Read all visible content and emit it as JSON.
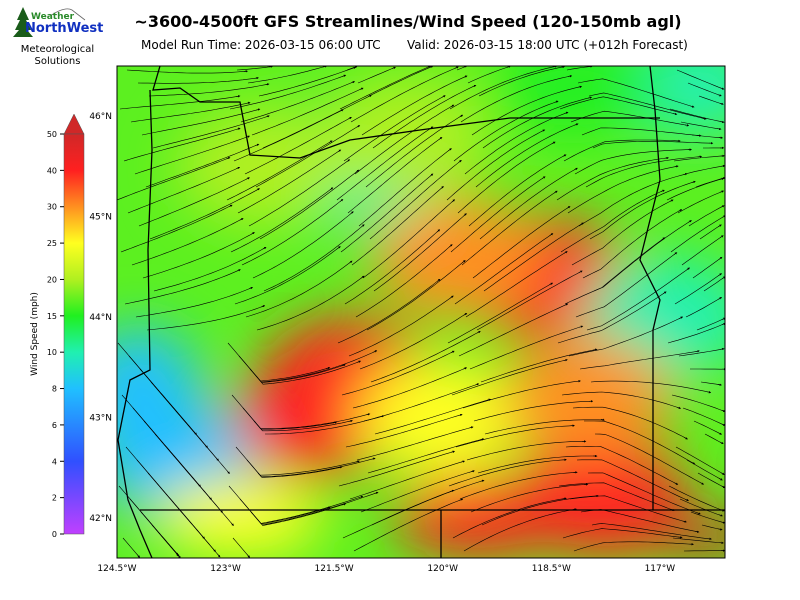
{
  "header": {
    "title": "~3600-4500ft GFS Streamlines/Wind Speed (120-150mb agl)",
    "model_run": "Model Run Time: 2026-03-15 06:00 UTC",
    "valid": "Valid: 2026-03-15 18:00 UTC  (+012h Forecast)"
  },
  "logo": {
    "line1": "Weather",
    "line2": "NorthWest",
    "caption": "Meteorological Solutions",
    "colors": {
      "tree": "#1a5c1a",
      "weather": "#2a8a2a",
      "northwest": "#1030c0"
    }
  },
  "chart_data": {
    "type": "heatmap",
    "title": "~3600-4500ft GFS Streamlines/Wind Speed (120-150mb agl)",
    "xlabel": "",
    "ylabel": "",
    "x_ticks": [
      "124.5°W",
      "123°W",
      "121.5°W",
      "120°W",
      "118.5°W",
      "117°W"
    ],
    "y_ticks": [
      "46°N",
      "45°N",
      "44°N",
      "43°N",
      "42°N"
    ],
    "xlim": [
      -124.5,
      -116.1
    ],
    "ylim": [
      41.6,
      46.5
    ],
    "overlay": "streamlines",
    "colorbar": {
      "label": "Wind Speed (mph)",
      "ticks": [
        0,
        2,
        4,
        6,
        8,
        10,
        15,
        20,
        25,
        30,
        40,
        50
      ],
      "extend": "max",
      "stops": [
        {
          "v": 0,
          "c": "#c040ff"
        },
        {
          "v": 4,
          "c": "#3050ff"
        },
        {
          "v": 8,
          "c": "#20c0ff"
        },
        {
          "v": 10,
          "c": "#20f0b0"
        },
        {
          "v": 15,
          "c": "#20f020"
        },
        {
          "v": 20,
          "c": "#b0f020"
        },
        {
          "v": 25,
          "c": "#ffff20"
        },
        {
          "v": 30,
          "c": "#ff9020"
        },
        {
          "v": 40,
          "c": "#ff2020"
        },
        {
          "v": 50,
          "c": "#d02828"
        }
      ]
    },
    "wind_regions": [
      {
        "lon": -123.7,
        "lat": 42.6,
        "speed": 5
      },
      {
        "lon": -124.2,
        "lat": 43.3,
        "speed": 8
      },
      {
        "lon": -121.3,
        "lat": 43.4,
        "speed": 36
      },
      {
        "lon": -121.7,
        "lat": 43.0,
        "speed": 34
      },
      {
        "lon": -118.6,
        "lat": 44.4,
        "speed": 34
      },
      {
        "lon": -119.8,
        "lat": 44.6,
        "speed": 26
      },
      {
        "lon": -116.3,
        "lat": 41.8,
        "speed": 45
      },
      {
        "lon": -117.8,
        "lat": 42.2,
        "speed": 32
      },
      {
        "lon": -119.5,
        "lat": 42.0,
        "speed": 33
      },
      {
        "lon": -116.5,
        "lat": 46.3,
        "speed": 9
      },
      {
        "lon": -118.2,
        "lat": 46.3,
        "speed": 11
      },
      {
        "lon": -121.1,
        "lat": 45.5,
        "speed": 10
      },
      {
        "lon": -116.9,
        "lat": 44.0,
        "speed": 10
      },
      {
        "lon": -122.5,
        "lat": 45.5,
        "speed": 17
      },
      {
        "lon": -120.5,
        "lat": 45.8,
        "speed": 18
      },
      {
        "lon": -120.0,
        "lat": 43.0,
        "speed": 25
      },
      {
        "lon": -122.8,
        "lat": 42.0,
        "speed": 22
      },
      {
        "lon": -118.0,
        "lat": 43.2,
        "speed": 26
      }
    ]
  }
}
